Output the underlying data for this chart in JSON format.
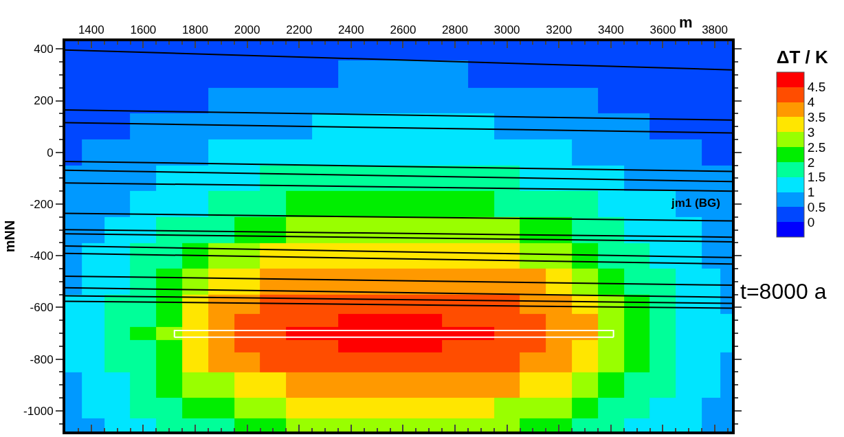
{
  "chart_data": {
    "type": "heatmap",
    "ylabel": "mNN",
    "xlabel": "m",
    "clabel": "ΔT / K",
    "annotations": [
      "jm1 (BG)",
      "t=8000 a"
    ],
    "x": [
      1330,
      1400,
      1500,
      1600,
      1700,
      1800,
      1900,
      2000,
      2100,
      2200,
      2300,
      2400,
      2500,
      2600,
      2700,
      2800,
      2900,
      3000,
      3100,
      3200,
      3300,
      3400,
      3500,
      3600,
      3700,
      3800,
      3845
    ],
    "y": [
      410,
      300,
      200,
      100,
      0,
      -100,
      -200,
      -300,
      -400,
      -500,
      -600,
      -650,
      -700,
      -750,
      -800,
      -900,
      -1000,
      -1060
    ],
    "cells": [
      [
        0.14,
        0.17,
        0.21,
        0.23,
        0.26,
        0.28,
        0.31,
        0.33,
        0.34,
        0.35,
        0.36,
        0.37,
        0.38,
        0.38,
        0.37,
        0.37,
        0.36,
        0.35,
        0.33,
        0.31,
        0.29,
        0.27,
        0.24,
        0.22,
        0.19,
        0.16,
        0.13
      ],
      [
        0.25,
        0.28,
        0.32,
        0.35,
        0.38,
        0.4,
        0.43,
        0.45,
        0.47,
        0.48,
        0.49,
        0.5,
        0.51,
        0.51,
        0.51,
        0.5,
        0.49,
        0.47,
        0.46,
        0.44,
        0.41,
        0.39,
        0.36,
        0.33,
        0.3,
        0.26,
        0.24
      ],
      [
        0.32,
        0.36,
        0.4,
        0.43,
        0.46,
        0.49,
        0.54,
        0.6,
        0.65,
        0.69,
        0.73,
        0.76,
        0.77,
        0.77,
        0.76,
        0.74,
        0.71,
        0.67,
        0.62,
        0.57,
        0.51,
        0.48,
        0.45,
        0.41,
        0.38,
        0.34,
        0.31
      ],
      [
        0.4,
        0.44,
        0.48,
        0.53,
        0.61,
        0.69,
        0.77,
        0.84,
        0.92,
        0.98,
        1.03,
        1.05,
        1.07,
        1.07,
        1.06,
        1.04,
        1.0,
        0.94,
        0.87,
        0.8,
        0.72,
        0.64,
        0.56,
        0.49,
        0.46,
        0.42,
        0.39
      ],
      [
        0.47,
        0.52,
        0.62,
        0.71,
        0.81,
        0.92,
        1.02,
        1.11,
        1.19,
        1.26,
        1.32,
        1.35,
        1.38,
        1.38,
        1.37,
        1.33,
        1.28,
        1.22,
        1.14,
        1.06,
        0.96,
        0.86,
        0.75,
        0.65,
        0.56,
        0.49,
        0.46
      ],
      [
        0.57,
        0.67,
        0.78,
        0.91,
        1.04,
        1.16,
        1.29,
        1.41,
        1.52,
        1.6,
        1.67,
        1.71,
        1.74,
        1.74,
        1.73,
        1.69,
        1.63,
        1.55,
        1.45,
        1.34,
        1.21,
        1.09,
        0.96,
        0.83,
        0.71,
        0.61,
        0.54
      ],
      [
        0.69,
        0.82,
        0.95,
        1.11,
        1.27,
        1.44,
        1.6,
        1.75,
        1.89,
        2.01,
        2.14,
        2.22,
        2.28,
        2.28,
        2.25,
        2.18,
        2.07,
        1.94,
        1.81,
        1.66,
        1.51,
        1.34,
        1.17,
        1.01,
        0.87,
        0.74,
        0.66
      ],
      [
        0.81,
        0.95,
        1.13,
        1.32,
        1.54,
        1.75,
        1.98,
        2.23,
        2.49,
        2.62,
        2.71,
        2.78,
        2.82,
        2.82,
        2.8,
        2.74,
        2.66,
        2.55,
        2.33,
        2.08,
        1.84,
        1.62,
        1.41,
        1.2,
        1.02,
        0.86,
        0.77
      ],
      [
        0.91,
        1.09,
        1.3,
        1.55,
        1.83,
        2.15,
        2.51,
        2.78,
        3.01,
        3.16,
        3.29,
        3.37,
        3.42,
        3.43,
        3.4,
        3.32,
        3.22,
        3.08,
        2.88,
        2.62,
        2.29,
        1.95,
        1.66,
        1.4,
        1.17,
        0.97,
        0.87
      ],
      [
        0.99,
        1.21,
        1.46,
        1.77,
        2.14,
        2.6,
        3.05,
        3.4,
        3.57,
        3.66,
        3.73,
        3.78,
        3.8,
        3.81,
        3.79,
        3.75,
        3.69,
        3.61,
        3.51,
        3.19,
        2.78,
        2.32,
        1.91,
        1.58,
        1.3,
        1.07,
        0.94
      ],
      [
        1.05,
        1.29,
        1.58,
        1.94,
        2.4,
        3.07,
        3.57,
        3.83,
        4.02,
        4.07,
        4.11,
        4.15,
        4.17,
        4.17,
        4.16,
        4.13,
        4.09,
        4.04,
        3.94,
        3.67,
        3.3,
        2.65,
        2.11,
        1.72,
        1.4,
        1.14,
        0.99
      ],
      [
        1.06,
        1.31,
        1.61,
        1.99,
        2.48,
        3.22,
        3.72,
        4.03,
        4.15,
        4.28,
        4.42,
        4.51,
        4.54,
        4.54,
        4.53,
        4.47,
        4.34,
        4.2,
        4.08,
        3.87,
        3.5,
        2.78,
        2.17,
        1.75,
        1.42,
        1.16,
        1.0
      ],
      [
        1.07,
        1.31,
        1.62,
        2.0,
        2.5,
        3.27,
        3.78,
        4.08,
        4.27,
        4.51,
        4.59,
        4.67,
        4.74,
        4.77,
        4.7,
        4.62,
        4.55,
        4.37,
        4.15,
        3.97,
        3.54,
        2.82,
        2.19,
        1.76,
        1.43,
        1.16,
        1.01
      ],
      [
        1.06,
        1.3,
        1.6,
        1.98,
        2.46,
        3.18,
        3.68,
        4.02,
        4.14,
        4.28,
        4.43,
        4.52,
        4.55,
        4.55,
        4.53,
        4.49,
        4.34,
        4.19,
        4.07,
        3.84,
        3.45,
        2.76,
        2.16,
        1.75,
        1.41,
        1.15,
        1.0
      ],
      [
        1.04,
        1.28,
        1.56,
        1.92,
        2.38,
        3.01,
        3.51,
        3.78,
        4.01,
        4.07,
        4.13,
        4.17,
        4.19,
        4.2,
        4.18,
        4.15,
        4.1,
        4.04,
        3.89,
        3.62,
        3.21,
        2.6,
        2.09,
        1.7,
        1.39,
        1.13,
        0.99
      ],
      [
        0.98,
        1.19,
        1.44,
        1.73,
        2.09,
        2.52,
        2.94,
        3.22,
        3.46,
        3.57,
        3.65,
        3.71,
        3.74,
        3.74,
        3.72,
        3.68,
        3.61,
        3.52,
        3.32,
        3.07,
        2.69,
        2.25,
        1.87,
        1.55,
        1.28,
        1.06,
        0.93
      ],
      [
        0.89,
        1.06,
        1.27,
        1.5,
        1.76,
        2.05,
        2.39,
        2.66,
        2.87,
        3.03,
        3.11,
        3.17,
        3.2,
        3.21,
        3.18,
        3.14,
        3.06,
        2.94,
        2.75,
        2.52,
        2.19,
        1.88,
        1.61,
        1.36,
        1.14,
        0.95,
        0.85
      ],
      [
        0.81,
        0.95,
        1.12,
        1.32,
        1.53,
        1.74,
        1.96,
        2.21,
        2.45,
        2.59,
        2.69,
        2.75,
        2.79,
        2.79,
        2.77,
        2.72,
        2.64,
        2.53,
        2.31,
        2.06,
        1.83,
        1.61,
        1.4,
        1.2,
        1.02,
        0.87,
        0.78
      ]
    ],
    "colors": [
      "#0000ff",
      "#0047ff",
      "#0099ff",
      "#00e5ff",
      "#00ff99",
      "#00ee00",
      "#99ff00",
      "#ffe600",
      "#ff9900",
      "#ff4d00",
      "#ff0000"
    ],
    "clim": [
      -0.5,
      5
    ],
    "cticks": [
      0,
      0.5,
      1,
      1.5,
      2,
      2.5,
      3,
      3.5,
      4,
      4.5
    ],
    "xlim": [
      1300,
      3866
    ],
    "xticks": [
      1400,
      1600,
      1800,
      2000,
      2200,
      2400,
      2600,
      2800,
      3000,
      3200,
      3400,
      3600,
      3800
    ],
    "ylim": [
      -1080,
      430
    ],
    "yticks": [
      -1000,
      -800,
      -600,
      -400,
      -200,
      0,
      200,
      400
    ],
    "series": [
      {
        "type": "line",
        "color": "#000000",
        "x": [
          1300,
          3866
        ],
        "values": [
          396,
          319
        ]
      },
      {
        "type": "line",
        "color": "#000000",
        "x": [
          1300,
          3866
        ],
        "values": [
          164,
          125
        ]
      },
      {
        "type": "line",
        "color": "#000000",
        "x": [
          1300,
          3866
        ],
        "values": [
          115,
          75
        ]
      },
      {
        "type": "line",
        "color": "#000000",
        "x": [
          1300,
          3866
        ],
        "values": [
          -35,
          -74
        ]
      },
      {
        "type": "line",
        "color": "#000000",
        "x": [
          1300,
          3866
        ],
        "values": [
          -69,
          -113
        ]
      },
      {
        "type": "line",
        "color": "#000000",
        "x": [
          1300,
          3866
        ],
        "values": [
          -118,
          -150
        ]
      },
      {
        "type": "line",
        "color": "#000000",
        "x": [
          1300,
          3866
        ],
        "values": [
          -236,
          -265
        ]
      },
      {
        "type": "line",
        "color": "#000000",
        "x": [
          1300,
          3866
        ],
        "values": [
          -299,
          -328
        ]
      },
      {
        "type": "line",
        "color": "#000000",
        "x": [
          1300,
          3866
        ],
        "values": [
          -315,
          -346
        ]
      },
      {
        "type": "line",
        "color": "#000000",
        "x": [
          1300,
          3866
        ],
        "values": [
          -362,
          -407
        ]
      },
      {
        "type": "line",
        "color": "#000000",
        "x": [
          1300,
          3866
        ],
        "values": [
          -391,
          -432
        ]
      },
      {
        "type": "line",
        "color": "#000000",
        "x": [
          1300,
          3866
        ],
        "values": [
          -479,
          -514
        ]
      },
      {
        "type": "line",
        "color": "#000000",
        "x": [
          1300,
          3866
        ],
        "values": [
          -524,
          -561
        ]
      },
      {
        "type": "line",
        "color": "#000000",
        "x": [
          1300,
          3866
        ],
        "values": [
          -555,
          -584
        ]
      },
      {
        "type": "line",
        "color": "#000000",
        "x": [
          1300,
          3866
        ],
        "values": [
          -576,
          -603
        ]
      },
      {
        "type": "line",
        "color": "#ffffff",
        "x": [
          1720,
          1720,
          3410,
          3410
        ],
        "values": [
          -715,
          -689,
          -689,
          -715
        ]
      },
      {
        "type": "line",
        "color": "#ffffff",
        "x": [
          1720,
          3410
        ],
        "values": [
          -715,
          -715
        ]
      }
    ]
  }
}
